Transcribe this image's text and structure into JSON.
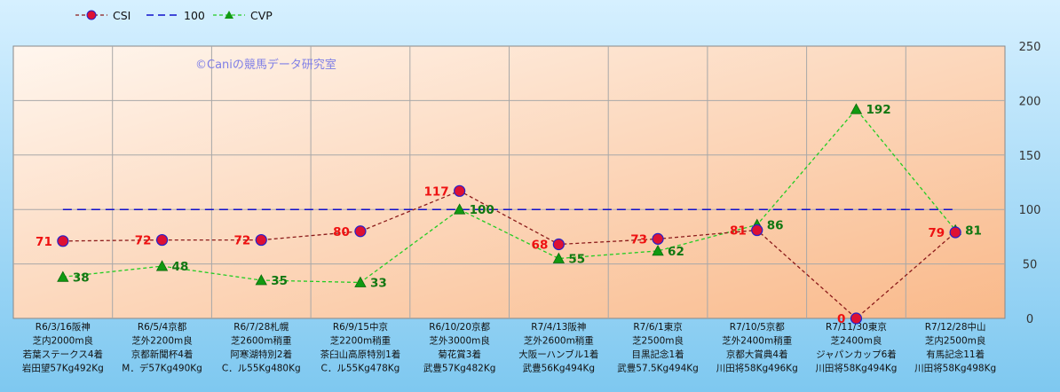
{
  "chart_data": {
    "type": "line",
    "title": "",
    "watermark": "©Caniの競馬データ研究室",
    "y_axis": {
      "position": "right",
      "min": 0,
      "max": 250,
      "ticks": [
        0,
        50,
        100,
        150,
        200,
        250
      ]
    },
    "grid": true,
    "legend": {
      "position": "top-left",
      "entries": [
        {
          "name": "CSI",
          "color": "#8B1A1A",
          "marker": "circle"
        },
        {
          "name": "100",
          "color": "#1010CC",
          "marker": "none"
        },
        {
          "name": "CVP",
          "color": "#22CC22",
          "marker": "triangle"
        }
      ]
    },
    "categories": [
      [
        "R6/3/16阪神",
        "芝内2000m良",
        "若葉ステークス4着",
        "岩田望57Kg492Kg"
      ],
      [
        "R6/5/4京都",
        "芝外2200m良",
        "京都新聞杯4着",
        "M．デ57Kg490Kg"
      ],
      [
        "R6/7/28札幌",
        "芝2600m稍重",
        "阿寒湖特別2着",
        "C．ル55Kg480Kg"
      ],
      [
        "R6/9/15中京",
        "芝2200m稍重",
        "茶臼山高原特別1着",
        "C．ル55Kg478Kg"
      ],
      [
        "R6/10/20京都",
        "芝外3000m良",
        "菊花賞3着",
        "武豊57Kg482Kg"
      ],
      [
        "R7/4/13阪神",
        "芝外2600m稍重",
        "大阪ーハンブル1着",
        "武豊56Kg494Kg"
      ],
      [
        "R7/6/1東京",
        "芝2500m良",
        "目黒記念1着",
        "武豊57.5Kg494Kg"
      ],
      [
        "R7/10/5京都",
        "芝外2400m稍重",
        "京都大賞典4着",
        "川田将58Kg496Kg"
      ],
      [
        "R7/11/30東京",
        "芝2400m良",
        "ジャパンカップ6着",
        "川田将58Kg494Kg"
      ],
      [
        "R7/12/28中山",
        "芝内2500m良",
        "有馬記念11着",
        "川田将58Kg498Kg"
      ]
    ],
    "series": [
      {
        "name": "CSI",
        "values": [
          71,
          72,
          72,
          80,
          117,
          68,
          73,
          81,
          0,
          79
        ],
        "line_color": "#8B1A1A",
        "marker_fill": "#DD1133",
        "marker_stroke": "#2222CC",
        "label_color": "#EE1111"
      },
      {
        "name": "100",
        "values": [
          100,
          100,
          100,
          100,
          100,
          100,
          100,
          100,
          100,
          100
        ],
        "line_color": "#1010CC"
      },
      {
        "name": "CVP",
        "values": [
          38,
          48,
          35,
          33,
          100,
          55,
          62,
          86,
          192,
          81
        ],
        "line_color": "#22CC22",
        "marker_fill": "#119911",
        "label_color": "#117711"
      }
    ]
  }
}
